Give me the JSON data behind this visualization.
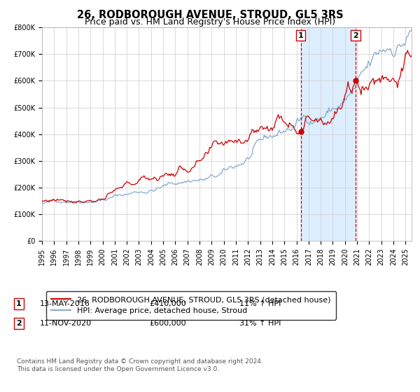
{
  "title": "26, RODBOROUGH AVENUE, STROUD, GL5 3RS",
  "subtitle": "Price paid vs. HM Land Registry's House Price Index (HPI)",
  "legend_line1": "26, RODBOROUGH AVENUE, STROUD, GL5 3RS (detached house)",
  "legend_line2": "HPI: Average price, detached house, Stroud",
  "annotation1_label": "1",
  "annotation1_date": "13-MAY-2016",
  "annotation1_price": "£410,000",
  "annotation1_hpi": "11% ↑ HPI",
  "annotation2_label": "2",
  "annotation2_date": "11-NOV-2020",
  "annotation2_price": "£600,000",
  "annotation2_hpi": "31% ↑ HPI",
  "sale1_x": 2016.36,
  "sale1_y": 410000,
  "sale2_x": 2020.87,
  "sale2_y": 600000,
  "ylim": [
    0,
    800000
  ],
  "xlim": [
    1995.0,
    2025.5
  ],
  "ylabel_ticks": [
    "£0",
    "£100K",
    "£200K",
    "£300K",
    "£400K",
    "£500K",
    "£600K",
    "£700K",
    "£800K"
  ],
  "ytick_vals": [
    0,
    100000,
    200000,
    300000,
    400000,
    500000,
    600000,
    700000,
    800000
  ],
  "xtick_vals": [
    1995,
    1996,
    1997,
    1998,
    1999,
    2000,
    2001,
    2002,
    2003,
    2004,
    2005,
    2006,
    2007,
    2008,
    2009,
    2010,
    2011,
    2012,
    2013,
    2014,
    2015,
    2016,
    2017,
    2018,
    2019,
    2020,
    2021,
    2022,
    2023,
    2024,
    2025
  ],
  "line_red": "#cc0000",
  "line_blue": "#88aacc",
  "shade_color": "#ddeeff",
  "dot_color": "#cc0000",
  "vline_color": "#cc0000",
  "grid_color": "#cccccc",
  "bg_color": "#ffffff",
  "footnote": "Contains HM Land Registry data © Crown copyright and database right 2024.\nThis data is licensed under the Open Government Licence v3.0.",
  "title_fontsize": 10.5,
  "subtitle_fontsize": 9,
  "tick_fontsize": 7,
  "legend_fontsize": 8,
  "annotation_fontsize": 8,
  "footnote_fontsize": 6.5
}
